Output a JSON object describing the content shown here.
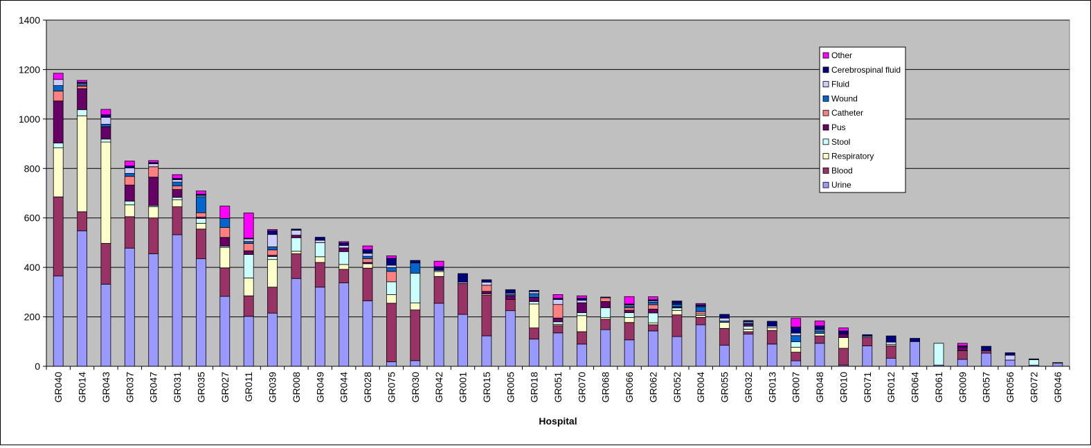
{
  "chart_data": {
    "type": "bar",
    "stacked": true,
    "title": "",
    "xlabel": "Hospital",
    "ylabel": "",
    "ylim": [
      0,
      1400
    ],
    "yticks": [
      0,
      200,
      400,
      600,
      800,
      1000,
      1200,
      1400
    ],
    "grid": true,
    "legend_position": "top-right",
    "categories": [
      "GR040",
      "GR014",
      "GR043",
      "GR037",
      "GR047",
      "GR031",
      "GR035",
      "GR027",
      "GR011",
      "GR039",
      "GR008",
      "GR049",
      "GR044",
      "GR028",
      "GR075",
      "GR030",
      "GR042",
      "GR001",
      "GR015",
      "GR005",
      "GR018",
      "GR051",
      "GR070",
      "GR068",
      "GR066",
      "GR062",
      "GR052",
      "GR004",
      "GR055",
      "GR032",
      "GR013",
      "GR007",
      "GR048",
      "GR010",
      "GR071",
      "GR012",
      "GR064",
      "GR061",
      "GR009",
      "GR057",
      "GR056",
      "GR072",
      "GR046"
    ],
    "legend_order": [
      "Other",
      "Cerebrospinal fluid",
      "Fluid",
      "Wound",
      "Catheter",
      "Pus",
      "Stool",
      "Respiratory",
      "Blood",
      "Urine"
    ],
    "series": [
      {
        "name": "Urine",
        "color": "#9999ff",
        "values": [
          365,
          548,
          332,
          478,
          455,
          532,
          435,
          283,
          202,
          215,
          355,
          320,
          337,
          265,
          18,
          23,
          255,
          210,
          123,
          225,
          110,
          135,
          90,
          148,
          107,
          143,
          120,
          168,
          85,
          130,
          90,
          22,
          93,
          5,
          83,
          33,
          100,
          5,
          28,
          53,
          25,
          5,
          12
        ]
      },
      {
        "name": "Blood",
        "color": "#993366",
        "values": [
          320,
          77,
          165,
          127,
          145,
          113,
          120,
          115,
          83,
          105,
          100,
          100,
          55,
          132,
          237,
          205,
          108,
          125,
          165,
          45,
          45,
          30,
          50,
          42,
          70,
          25,
          88,
          30,
          68,
          10,
          55,
          35,
          30,
          68,
          33,
          50,
          0,
          0,
          35,
          10,
          0,
          0,
          0
        ]
      },
      {
        "name": "Respiratory",
        "color": "#ffffcc",
        "values": [
          198,
          388,
          410,
          48,
          45,
          28,
          23,
          83,
          72,
          112,
          10,
          23,
          20,
          18,
          35,
          28,
          20,
          0,
          5,
          0,
          97,
          5,
          65,
          7,
          20,
          8,
          18,
          8,
          25,
          10,
          10,
          20,
          10,
          43,
          0,
          5,
          0,
          0,
          0,
          0,
          0,
          0,
          0
        ]
      },
      {
        "name": "Stool",
        "color": "#ccffff",
        "values": [
          20,
          25,
          12,
          15,
          5,
          10,
          20,
          5,
          95,
          12,
          55,
          57,
          52,
          0,
          52,
          120,
          0,
          0,
          0,
          0,
          10,
          10,
          12,
          40,
          20,
          40,
          10,
          5,
          0,
          12,
          0,
          22,
          0,
          0,
          0,
          0,
          0,
          88,
          0,
          0,
          0,
          22,
          0
        ]
      },
      {
        "name": "Pus",
        "color": "#660066",
        "values": [
          170,
          85,
          50,
          65,
          115,
          32,
          5,
          35,
          15,
          5,
          10,
          0,
          15,
          5,
          0,
          0,
          0,
          0,
          10,
          15,
          17,
          15,
          40,
          25,
          10,
          15,
          5,
          0,
          0,
          8,
          0,
          0,
          0,
          15,
          0,
          0,
          0,
          0,
          15,
          0,
          0,
          0,
          0
        ]
      },
      {
        "name": "Catheter",
        "color": "#ff8080",
        "values": [
          40,
          10,
          0,
          35,
          42,
          15,
          18,
          40,
          30,
          22,
          0,
          0,
          0,
          15,
          42,
          0,
          0,
          0,
          25,
          0,
          0,
          55,
          0,
          15,
          10,
          18,
          0,
          10,
          0,
          0,
          0,
          0,
          0,
          0,
          0,
          0,
          0,
          0,
          0,
          0,
          0,
          0,
          0
        ]
      },
      {
        "name": "Wound",
        "color": "#0066cc",
        "values": [
          22,
          5,
          10,
          12,
          0,
          15,
          65,
          37,
          8,
          12,
          0,
          0,
          0,
          10,
          15,
          42,
          0,
          0,
          0,
          5,
          15,
          0,
          0,
          0,
          5,
          10,
          10,
          20,
          5,
          5,
          0,
          25,
          10,
          0,
          0,
          0,
          0,
          0,
          0,
          0,
          0,
          0,
          0
        ]
      },
      {
        "name": "Fluid",
        "color": "#ccccff",
        "values": [
          25,
          5,
          28,
          22,
          12,
          10,
          5,
          0,
          10,
          50,
          20,
          10,
          10,
          12,
          10,
          0,
          5,
          5,
          12,
          5,
          8,
          20,
          10,
          0,
          5,
          5,
          3,
          3,
          12,
          5,
          7,
          10,
          5,
          0,
          5,
          10,
          0,
          0,
          0,
          0,
          20,
          0,
          3
        ]
      },
      {
        "name": "Cerebrospinal fluid",
        "color": "#000080",
        "values": [
          0,
          5,
          10,
          8,
          5,
          5,
          5,
          0,
          3,
          15,
          5,
          12,
          10,
          15,
          28,
          10,
          15,
          35,
          10,
          15,
          5,
          5,
          8,
          3,
          5,
          5,
          10,
          5,
          15,
          5,
          20,
          25,
          15,
          12,
          7,
          25,
          13,
          0,
          5,
          18,
          10,
          3,
          0
        ]
      },
      {
        "name": "Other",
        "color": "#ff00ff",
        "values": [
          25,
          8,
          22,
          20,
          8,
          15,
          13,
          50,
          102,
          5,
          0,
          0,
          5,
          15,
          10,
          0,
          22,
          0,
          0,
          0,
          0,
          15,
          10,
          0,
          30,
          12,
          0,
          5,
          0,
          0,
          0,
          35,
          20,
          12,
          0,
          0,
          0,
          0,
          10,
          0,
          0,
          0,
          0
        ]
      }
    ]
  }
}
